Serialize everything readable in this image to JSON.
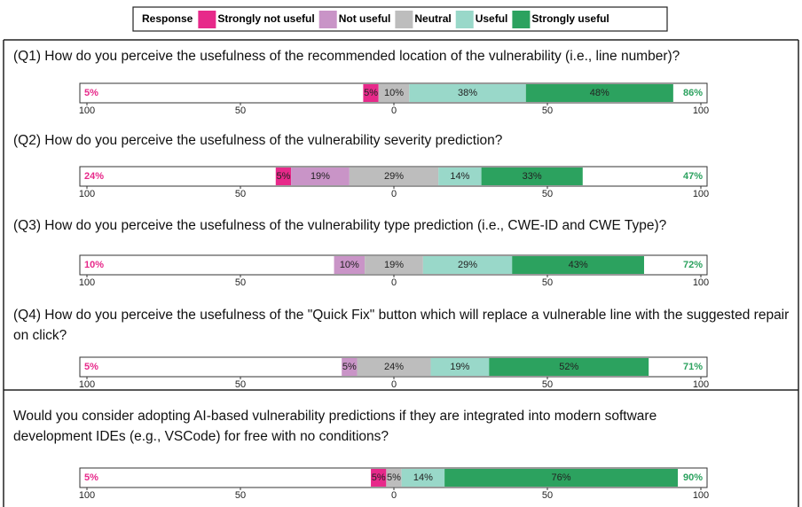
{
  "chart_data": {
    "type": "diverging_bar",
    "legend_title": "Response",
    "categories": [
      "(Q1) How do you perceive the usefulness of the recommended location of the vulnerability (i.e., line number)?",
      "(Q2) How do you perceive the usefulness of the vulnerability severity prediction?",
      "(Q3) How do you perceive the usefulness of the vulnerability type prediction (i.e., CWE-ID and CWE Type)?",
      "(Q4) How do you perceive the usefulness of the \"Quick Fix\" button which will replace a vulnerable line with the suggested repair on click?",
      "Would you consider adopting AI-based vulnerability predictions if they are integrated into modern software development IDEs (e.g., VSCode) for free with no conditions?"
    ],
    "series": [
      {
        "name": "Strongly not useful",
        "color": "#e7298a",
        "values": [
          5,
          5,
          0,
          0,
          5
        ],
        "value_labels": [
          "5%",
          "5%",
          null,
          null,
          "5%"
        ]
      },
      {
        "name": "Not useful",
        "color": "#c994c7",
        "values": [
          0,
          19,
          10,
          5,
          0
        ],
        "value_labels": [
          null,
          "19%",
          "10%",
          "5%",
          null
        ]
      },
      {
        "name": "Neutral",
        "color": "#bdbdbd",
        "values": [
          10,
          29,
          19,
          24,
          5
        ],
        "value_labels": [
          "10%",
          "29%",
          "19%",
          "24%",
          "5%"
        ]
      },
      {
        "name": "Useful",
        "color": "#99d8c9",
        "values": [
          38,
          14,
          29,
          19,
          14
        ],
        "value_labels": [
          "38%",
          "14%",
          "29%",
          "19%",
          "14%"
        ]
      },
      {
        "name": "Strongly useful",
        "color": "#2ca25f",
        "values": [
          48,
          33,
          43,
          52,
          76
        ],
        "value_labels": [
          "48%",
          "33%",
          "43%",
          "52%",
          "76%"
        ]
      }
    ],
    "negative_totals": [
      5,
      24,
      10,
      5,
      5
    ],
    "negative_total_labels": [
      "5%",
      "24%",
      "10%",
      "5%",
      "5%"
    ],
    "positive_totals": [
      86,
      47,
      72,
      71,
      90
    ],
    "positive_total_labels": [
      "86%",
      "47%",
      "72%",
      "71%",
      "90%"
    ],
    "xlim": [
      -100,
      100
    ],
    "xticks": [
      {
        "value": -100,
        "label": "100"
      },
      {
        "value": -50,
        "label": "50"
      },
      0,
      50,
      100
    ]
  }
}
